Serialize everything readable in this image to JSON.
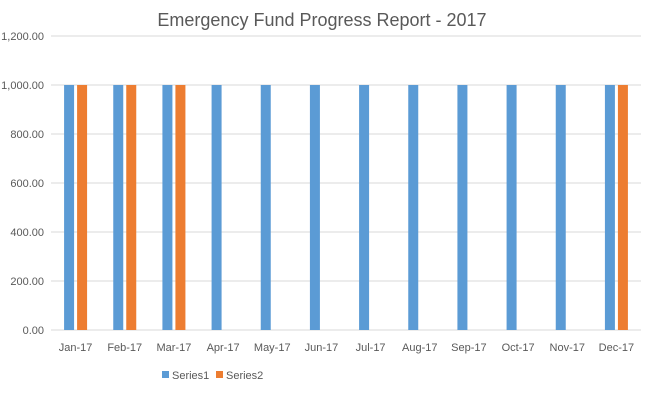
{
  "chart_data": {
    "type": "bar",
    "title": "Emergency Fund Progress Report - 2017",
    "xlabel": "",
    "ylabel": "",
    "categories": [
      "Jan-17",
      "Feb-17",
      "Mar-17",
      "Apr-17",
      "May-17",
      "Jun-17",
      "Jul-17",
      "Aug-17",
      "Sep-17",
      "Oct-17",
      "Nov-17",
      "Dec-17"
    ],
    "series": [
      {
        "name": "Series1",
        "color": "#5B9BD5",
        "values": [
          1000,
          1000,
          1000,
          1000,
          1000,
          1000,
          1000,
          1000,
          1000,
          1000,
          1000,
          1000
        ]
      },
      {
        "name": "Series2",
        "color": "#ED7D31",
        "values": [
          1000,
          1000,
          1000,
          null,
          null,
          null,
          null,
          null,
          null,
          null,
          null,
          1000
        ]
      }
    ],
    "ylim": [
      0,
      1200
    ],
    "yticks": [
      "0.00",
      "200.00",
      "400.00",
      "600.00",
      "800.00",
      "1,000.00",
      "1,200.00"
    ],
    "grid": true,
    "gridColor": "#D9D9D9",
    "legend_position": "bottom-left"
  }
}
